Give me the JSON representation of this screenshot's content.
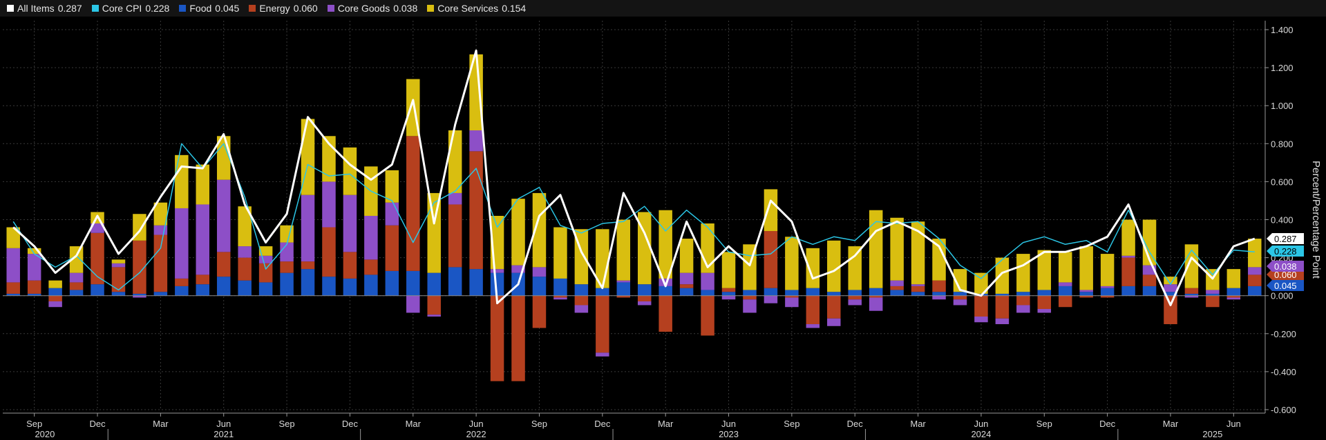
{
  "chart_data": {
    "type": "bar",
    "stacked": true,
    "ylabel": "Percent/Percentage Point",
    "ylim": [
      -0.6,
      1.4
    ],
    "y_ticks": [
      "1.400",
      "1.200",
      "1.000",
      "0.800",
      "0.600",
      "0.400",
      "0.200",
      "0.000",
      "-0.200",
      "-0.400",
      "-0.600"
    ],
    "grid": true,
    "legend_position": "top",
    "x_labels": [
      {
        "index": 1,
        "label": "Sep"
      },
      {
        "index": 4,
        "label": "Dec"
      },
      {
        "index": 7,
        "label": "Mar"
      },
      {
        "index": 10,
        "label": "Jun"
      },
      {
        "index": 13,
        "label": "Sep"
      },
      {
        "index": 16,
        "label": "Dec"
      },
      {
        "index": 19,
        "label": "Mar"
      },
      {
        "index": 22,
        "label": "Jun"
      },
      {
        "index": 25,
        "label": "Sep"
      },
      {
        "index": 28,
        "label": "Dec"
      },
      {
        "index": 31,
        "label": "Mar"
      },
      {
        "index": 34,
        "label": "Jun"
      },
      {
        "index": 37,
        "label": "Sep"
      },
      {
        "index": 40,
        "label": "Dec"
      },
      {
        "index": 43,
        "label": "Mar"
      },
      {
        "index": 46,
        "label": "Jun"
      },
      {
        "index": 49,
        "label": "Sep"
      },
      {
        "index": 52,
        "label": "Dec"
      },
      {
        "index": 55,
        "label": "Mar"
      },
      {
        "index": 58,
        "label": "Jun"
      }
    ],
    "year_labels": [
      {
        "index": 1.5,
        "label": "2020"
      },
      {
        "index": 10,
        "label": "2021"
      },
      {
        "index": 22,
        "label": "2022"
      },
      {
        "index": 34,
        "label": "2023"
      },
      {
        "index": 46,
        "label": "2024"
      },
      {
        "index": 57,
        "label": "2025"
      }
    ],
    "year_separators": [
      4.5,
      16.5,
      28.5,
      40.5,
      52.5
    ],
    "bar_series": [
      {
        "name": "Food",
        "color": "#1a56c4",
        "values": [
          0.01,
          0.01,
          0.04,
          0.03,
          0.06,
          0.02,
          0.01,
          0.02,
          0.05,
          0.06,
          0.1,
          0.08,
          0.07,
          0.12,
          0.14,
          0.1,
          0.09,
          0.11,
          0.13,
          0.13,
          0.12,
          0.15,
          0.14,
          0.12,
          0.12,
          0.1,
          0.09,
          0.06,
          0.04,
          0.07,
          0.06,
          0.05,
          0.04,
          0.03,
          0.02,
          0.03,
          0.04,
          0.03,
          0.04,
          0.02,
          0.03,
          0.04,
          0.03,
          0.02,
          0.02,
          0.02,
          0.01,
          0.01,
          0.02,
          0.03,
          0.05,
          0.02,
          0.04,
          0.05,
          0.05,
          0.02,
          0.01,
          0.01,
          0.04,
          0.05
        ]
      },
      {
        "name": "Energy",
        "color": "#b5401f",
        "values": [
          0.06,
          0.07,
          -0.03,
          0.04,
          0.27,
          0.13,
          0.28,
          0.3,
          0.04,
          0.05,
          0.13,
          0.12,
          0.1,
          0.06,
          0.04,
          0.26,
          0.14,
          0.08,
          0.24,
          0.71,
          -0.1,
          0.33,
          0.62,
          -0.45,
          -0.45,
          -0.17,
          -0.01,
          -0.05,
          -0.3,
          -0.01,
          -0.03,
          -0.19,
          0.02,
          -0.21,
          0.02,
          -0.02,
          0.3,
          -0.01,
          -0.15,
          -0.12,
          -0.02,
          -0.01,
          0.02,
          0.03,
          0.06,
          -0.02,
          -0.11,
          -0.12,
          -0.05,
          -0.07,
          -0.06,
          -0.01,
          -0.01,
          0.15,
          0.06,
          -0.15,
          0.03,
          -0.06,
          -0.01,
          0.06
        ]
      },
      {
        "name": "Core Goods",
        "color": "#8d4fc7",
        "values": [
          0.18,
          0.14,
          -0.03,
          0.05,
          0.05,
          0.02,
          -0.01,
          0.05,
          0.37,
          0.37,
          0.38,
          0.06,
          0.04,
          0.1,
          0.35,
          0.24,
          0.3,
          0.23,
          0.12,
          -0.09,
          -0.01,
          0.06,
          0.11,
          0.02,
          0.04,
          0.05,
          -0.01,
          -0.04,
          -0.02,
          0.01,
          -0.02,
          0.04,
          0.06,
          0.09,
          -0.02,
          -0.07,
          -0.04,
          -0.05,
          -0.02,
          -0.04,
          -0.03,
          -0.07,
          0.03,
          0.01,
          -0.02,
          -0.03,
          -0.03,
          -0.03,
          -0.04,
          -0.02,
          0.02,
          0.01,
          0.01,
          0.01,
          0.05,
          0.04,
          -0.01,
          0.02,
          -0.01,
          0.04
        ]
      },
      {
        "name": "Core Services",
        "color": "#d9be10",
        "values": [
          0.11,
          0.03,
          0.04,
          0.14,
          0.06,
          0.02,
          0.14,
          0.12,
          0.28,
          0.21,
          0.23,
          0.21,
          0.05,
          0.09,
          0.4,
          0.24,
          0.25,
          0.26,
          0.17,
          0.3,
          0.42,
          0.33,
          0.4,
          0.28,
          0.35,
          0.39,
          0.27,
          0.29,
          0.31,
          0.32,
          0.38,
          0.36,
          0.18,
          0.26,
          0.19,
          0.24,
          0.22,
          0.28,
          0.21,
          0.27,
          0.23,
          0.41,
          0.33,
          0.33,
          0.22,
          0.12,
          0.11,
          0.19,
          0.2,
          0.21,
          0.16,
          0.23,
          0.17,
          0.19,
          0.24,
          0.04,
          0.23,
          0.11,
          0.1,
          0.15
        ]
      }
    ],
    "line_series": [
      {
        "name": "All Items",
        "color": "#ffffff",
        "width": 3,
        "values": [
          0.36,
          0.26,
          0.12,
          0.21,
          0.42,
          0.22,
          0.34,
          0.52,
          0.68,
          0.67,
          0.85,
          0.48,
          0.28,
          0.43,
          0.94,
          0.8,
          0.69,
          0.61,
          0.69,
          1.03,
          0.38,
          0.9,
          1.29,
          -0.04,
          0.06,
          0.42,
          0.53,
          0.23,
          0.04,
          0.54,
          0.33,
          0.05,
          0.39,
          0.15,
          0.26,
          0.16,
          0.5,
          0.39,
          0.09,
          0.13,
          0.21,
          0.34,
          0.39,
          0.34,
          0.26,
          0.03,
          0.0,
          0.12,
          0.16,
          0.23,
          0.23,
          0.26,
          0.31,
          0.48,
          0.19,
          -0.05,
          0.2,
          0.09,
          0.26,
          0.3
        ]
      },
      {
        "name": "Core CPI",
        "color": "#2bc6e6",
        "width": 1.5,
        "values": [
          0.39,
          0.22,
          0.15,
          0.21,
          0.1,
          0.03,
          0.12,
          0.25,
          0.8,
          0.67,
          0.8,
          0.52,
          0.14,
          0.27,
          0.69,
          0.63,
          0.64,
          0.55,
          0.5,
          0.28,
          0.49,
          0.55,
          0.67,
          0.36,
          0.51,
          0.57,
          0.37,
          0.33,
          0.38,
          0.39,
          0.47,
          0.34,
          0.45,
          0.36,
          0.23,
          0.21,
          0.22,
          0.31,
          0.27,
          0.31,
          0.29,
          0.39,
          0.38,
          0.39,
          0.3,
          0.16,
          0.09,
          0.19,
          0.28,
          0.31,
          0.27,
          0.29,
          0.23,
          0.45,
          0.23,
          0.06,
          0.24,
          0.11,
          0.24,
          0.23
        ]
      }
    ],
    "legend": [
      {
        "name": "All Items",
        "value": "0.287",
        "color": "#ffffff"
      },
      {
        "name": "Core CPI",
        "value": "0.228",
        "color": "#2bc6e6"
      },
      {
        "name": "Food",
        "value": "0.045",
        "color": "#1a56c4"
      },
      {
        "name": "Energy",
        "value": "0.060",
        "color": "#b5401f"
      },
      {
        "name": "Core Goods",
        "value": "0.038",
        "color": "#8d4fc7"
      },
      {
        "name": "Core Services",
        "value": "0.154",
        "color": "#d9be10"
      }
    ],
    "right_tags": [
      {
        "value": "0.287",
        "y": 0.287,
        "bg": "#ffffff",
        "fg": "#000000"
      },
      {
        "value": "0.228",
        "y": 0.228,
        "bg": "#2bc6e6",
        "fg": "#000000"
      },
      {
        "value": "0.060",
        "y": 0.06,
        "bg": "#b5401f",
        "fg": "#ffffff"
      },
      {
        "value": "0.038",
        "y": 0.038,
        "bg": "#8d4fc7",
        "fg": "#ffffff"
      },
      {
        "value": "0.045",
        "y": 0.045,
        "bg": "#1a56c4",
        "fg": "#ffffff"
      }
    ]
  }
}
